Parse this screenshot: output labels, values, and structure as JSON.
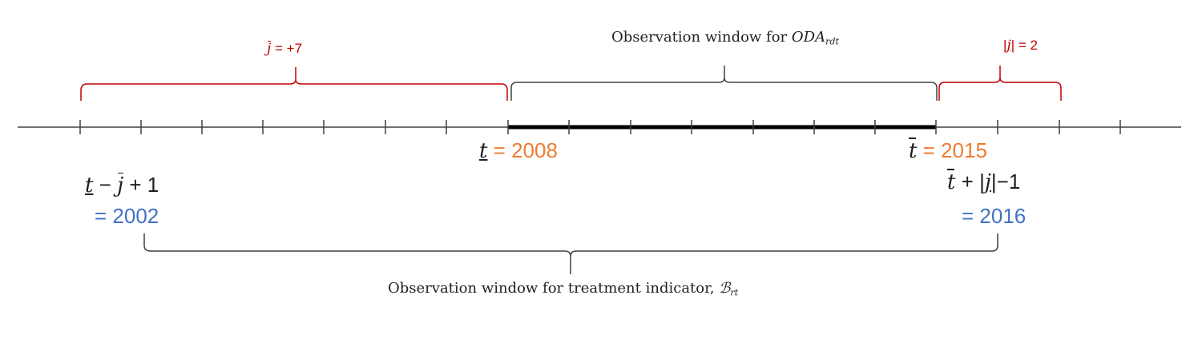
{
  "labels": {
    "jbar": {
      "sym": "j",
      "eq": " =  ",
      "val": "+7"
    },
    "oda": {
      "text": "Observation window for ",
      "sym": "ODA",
      "sub": "rdt"
    },
    "jabs": {
      "pre": "|",
      "sym": "j",
      "post": "| = ",
      "val": "2"
    },
    "t_lower": {
      "sym": "t",
      "eq": " = ",
      "val": "2008"
    },
    "t_upper": {
      "sym": "t",
      "eq": " = ",
      "val": "2015"
    },
    "left_expr": {
      "t": "t",
      "minus": "  − ",
      "j": "j",
      "plus": " + 1",
      "eq": "= 2002"
    },
    "right_expr": {
      "t": "t",
      "plus": " + |",
      "j": "j",
      "rest": "|−1",
      "eq": "= 2016"
    },
    "treatment": {
      "text": "Observation window for treatment indicator,  ",
      "sym": "ℬ",
      "sub": "rt"
    }
  },
  "colors": {
    "axis": "#404040",
    "bracket_red": "#c00000",
    "bracket_dark": "#404040",
    "highlight": "#000000",
    "orange": "#ed7d31",
    "blue": "#4472c4"
  }
}
